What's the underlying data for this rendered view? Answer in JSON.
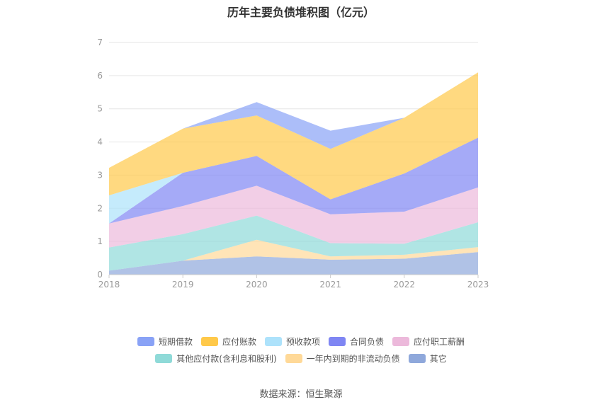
{
  "chart_data": {
    "type": "area",
    "stacked": true,
    "title": "历年主要负债堆积图（亿元）",
    "xlabel": "",
    "ylabel": "",
    "categories": [
      "2018",
      "2019",
      "2020",
      "2021",
      "2022",
      "2023"
    ],
    "ylim": [
      0,
      7
    ],
    "yticks": [
      0,
      1,
      2,
      3,
      4,
      5,
      6,
      7
    ],
    "grid": true,
    "legend_placement": "bottom",
    "series": [
      {
        "name": "其它",
        "color": "#8fa8db",
        "values": [
          0.12,
          0.42,
          0.55,
          0.45,
          0.48,
          0.68
        ]
      },
      {
        "name": "一年内到期的非流动负债",
        "color": "#ffd998",
        "values": [
          0.0,
          0.0,
          0.5,
          0.1,
          0.12,
          0.15
        ]
      },
      {
        "name": "其他应付款(含利息和股利)",
        "color": "#8fdad8",
        "values": [
          0.7,
          0.8,
          0.73,
          0.4,
          0.33,
          0.75
        ]
      },
      {
        "name": "应付职工薪酬",
        "color": "#ecb9db",
        "values": [
          0.72,
          0.85,
          0.9,
          0.87,
          0.97,
          1.05
        ]
      },
      {
        "name": "合同负债",
        "color": "#7f86f3",
        "values": [
          0.0,
          1.0,
          0.9,
          0.45,
          1.15,
          1.5
        ]
      },
      {
        "name": "预收款项",
        "color": "#ade2fb",
        "values": [
          0.85,
          0.0,
          0.0,
          0.0,
          0.0,
          0.0
        ]
      },
      {
        "name": "应付账款",
        "color": "#ffc94a",
        "values": [
          0.83,
          1.33,
          1.22,
          1.52,
          1.68,
          1.97
        ]
      },
      {
        "name": "短期借款",
        "color": "#89a2f6",
        "values": [
          0.0,
          0.0,
          0.4,
          0.55,
          0.0,
          0.0
        ]
      }
    ],
    "legend_order": [
      "短期借款",
      "应付账款",
      "预收款项",
      "合同负债",
      "应付职工薪酬",
      "其他应付款(含利息和股利)",
      "一年内到期的非流动负债",
      "其它"
    ]
  },
  "source": "数据来源：恒生聚源"
}
